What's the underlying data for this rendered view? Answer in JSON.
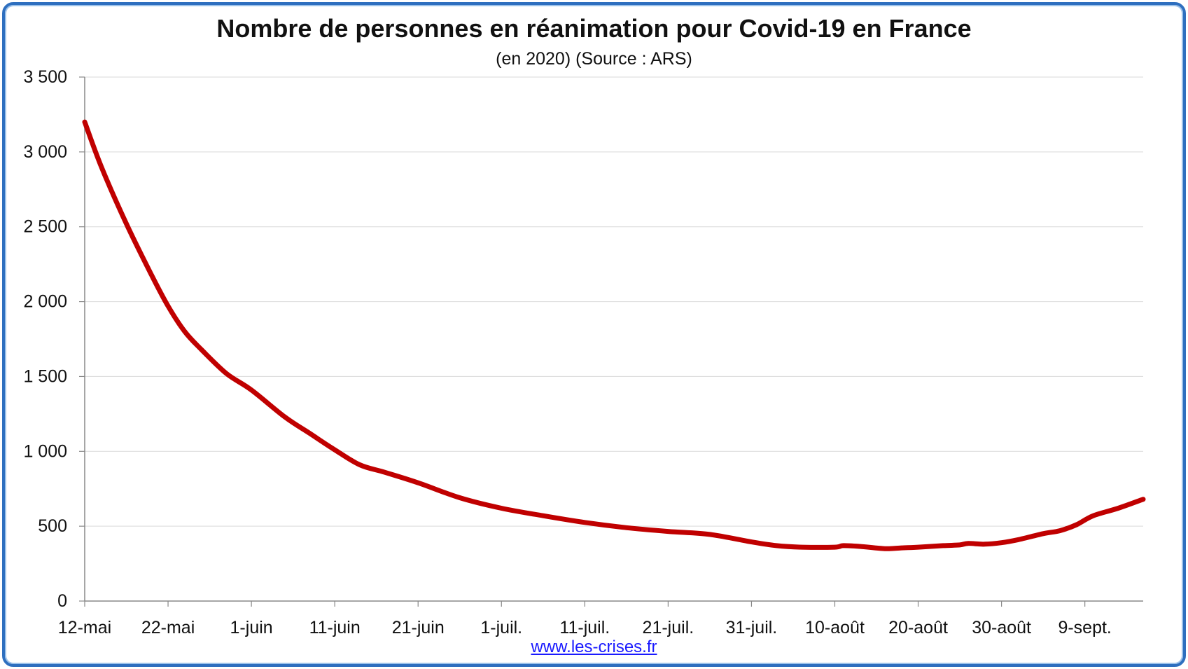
{
  "chart_data": {
    "type": "line",
    "title": "Nombre de personnes en réanimation pour Covid-19 en France",
    "subtitle": "(en 2020) (Source : ARS)",
    "source": "www.les-crises.fr",
    "xlabel": "",
    "ylabel": "",
    "ylim": [
      0,
      3500
    ],
    "yticks": [
      0,
      500,
      1000,
      1500,
      2000,
      2500,
      3000,
      3500
    ],
    "ytick_labels": [
      "0",
      "500",
      "1 000",
      "1 500",
      "2 000",
      "2 500",
      "3 000",
      "3 500"
    ],
    "xlim": [
      "2020-05-12",
      "2020-09-16"
    ],
    "xticks": [
      "2020-05-12",
      "2020-05-22",
      "2020-06-01",
      "2020-06-11",
      "2020-06-21",
      "2020-07-01",
      "2020-07-11",
      "2020-07-21",
      "2020-07-31",
      "2020-08-10",
      "2020-08-20",
      "2020-08-30",
      "2020-09-09"
    ],
    "xtick_labels": [
      "12-mai",
      "22-mai",
      "1-juin",
      "11-juin",
      "21-juin",
      "1-juil.",
      "11-juil.",
      "21-juil.",
      "31-juil.",
      "10-août",
      "20-août",
      "30-août",
      "9-sept."
    ],
    "grid": true,
    "legend": "none",
    "color": "#c00000",
    "series": [
      {
        "x": [
          "2020-05-12",
          "2020-05-14",
          "2020-05-17",
          "2020-05-20",
          "2020-05-22",
          "2020-05-24",
          "2020-05-26",
          "2020-05-29",
          "2020-06-01",
          "2020-06-05",
          "2020-06-08",
          "2020-06-11",
          "2020-06-14",
          "2020-06-17",
          "2020-06-21",
          "2020-06-26",
          "2020-07-01",
          "2020-07-06",
          "2020-07-11",
          "2020-07-16",
          "2020-07-21",
          "2020-07-26",
          "2020-07-31",
          "2020-08-03",
          "2020-08-06",
          "2020-08-10",
          "2020-08-11",
          "2020-08-13",
          "2020-08-16",
          "2020-08-18",
          "2020-08-20",
          "2020-08-23",
          "2020-08-25",
          "2020-08-26",
          "2020-08-28",
          "2020-08-30",
          "2020-09-01",
          "2020-09-04",
          "2020-09-06",
          "2020-09-08",
          "2020-09-10",
          "2020-09-13",
          "2020-09-16"
        ],
        "values": [
          3200,
          2900,
          2520,
          2180,
          1970,
          1800,
          1680,
          1520,
          1410,
          1230,
          1120,
          1010,
          910,
          860,
          790,
          690,
          620,
          570,
          525,
          490,
          465,
          445,
          395,
          370,
          360,
          360,
          370,
          365,
          350,
          355,
          360,
          370,
          375,
          385,
          380,
          390,
          410,
          450,
          470,
          510,
          570,
          620,
          680
        ]
      }
    ]
  }
}
